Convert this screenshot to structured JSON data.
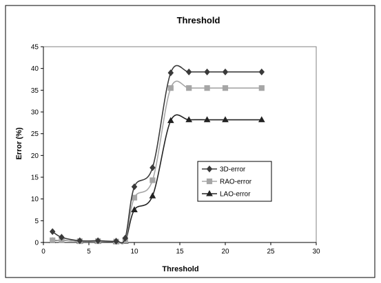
{
  "chart_data": {
    "type": "line",
    "title": "Threshold",
    "xlabel": "Threshold",
    "ylabel": "Error (%)",
    "xlim": [
      0,
      30
    ],
    "ylim": [
      0,
      45
    ],
    "xticks": [
      0,
      5,
      10,
      15,
      20,
      25,
      30
    ],
    "yticks": [
      0,
      5,
      10,
      15,
      20,
      25,
      30,
      35,
      40,
      45
    ],
    "grid": false,
    "smooth": true,
    "legend_position": "center-right",
    "x": [
      1,
      2,
      4,
      6,
      8,
      9,
      10,
      12,
      14,
      16,
      18,
      20,
      24
    ],
    "series": [
      {
        "name": "3D-error",
        "marker": "diamond",
        "color": "#3a3a3a",
        "values": [
          2.5,
          1.2,
          0.4,
          0.4,
          0.3,
          1.0,
          12.8,
          17.2,
          39.0,
          39.2,
          39.2,
          39.2,
          39.2
        ]
      },
      {
        "name": "RAO-error",
        "marker": "square",
        "color": "#a6a6a6",
        "values": [
          0.5,
          0.5,
          0.3,
          0.3,
          0.2,
          0.5,
          10.3,
          14.3,
          35.5,
          35.5,
          35.5,
          35.5,
          35.5
        ]
      },
      {
        "name": "LAO-error",
        "marker": "triangle",
        "color": "#222222",
        "values": [
          0.4,
          0.5,
          0.3,
          0.3,
          0.2,
          0.3,
          7.5,
          10.7,
          28.0,
          28.2,
          28.2,
          28.2,
          28.2
        ]
      }
    ]
  }
}
